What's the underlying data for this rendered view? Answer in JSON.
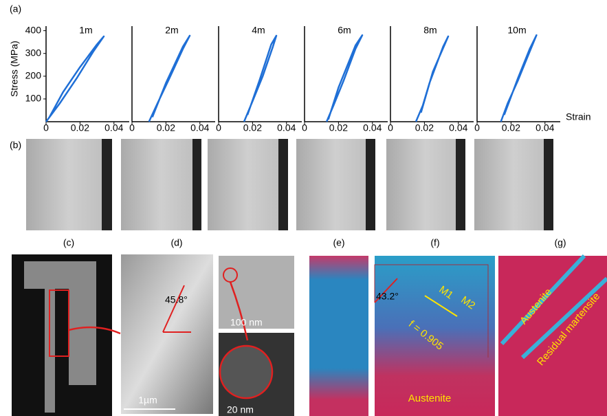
{
  "chart_data": [
    {
      "type": "line",
      "title": "1m",
      "ylabel": "Stress (MPa)",
      "x": [
        0,
        0.008,
        0.018,
        0.028,
        0.034,
        0.03,
        0.02,
        0.01,
        0.002
      ],
      "series": [
        {
          "color": "#1f6fd6",
          "values": [
            0,
            80,
            190,
            310,
            375,
            340,
            240,
            130,
            20
          ]
        }
      ],
      "xlim": [
        0,
        0.049
      ],
      "ylim": [
        0,
        420
      ],
      "xticks": [
        0,
        0.02,
        0.04
      ],
      "yticks": [
        100,
        200,
        300,
        400
      ]
    },
    {
      "type": "line",
      "title": "2m",
      "x": [
        0.01,
        0.015,
        0.022,
        0.03,
        0.034,
        0.03,
        0.02,
        0.012
      ],
      "series": [
        {
          "color": "#1f6fd6",
          "values": [
            0,
            80,
            190,
            320,
            378,
            330,
            170,
            20
          ]
        }
      ],
      "xlim": [
        0,
        0.049
      ],
      "ylim": [
        0,
        420
      ],
      "xticks": [
        0,
        0.02,
        0.04
      ]
    },
    {
      "type": "line",
      "title": "4m",
      "x": [
        0.015,
        0.02,
        0.026,
        0.032,
        0.034,
        0.031,
        0.024,
        0.017
      ],
      "series": [
        {
          "color": "#1f6fd6",
          "values": [
            0,
            90,
            200,
            330,
            378,
            340,
            180,
            30
          ]
        }
      ],
      "xlim": [
        0,
        0.049
      ],
      "ylim": [
        0,
        420
      ],
      "xticks": [
        0,
        0.02,
        0.04
      ]
    },
    {
      "type": "line",
      "title": "6m",
      "x": [
        0.013,
        0.017,
        0.023,
        0.03,
        0.034,
        0.03,
        0.02,
        0.014
      ],
      "series": [
        {
          "color": "#1f6fd6",
          "values": [
            0,
            70,
            180,
            320,
            380,
            335,
            150,
            10
          ]
        }
      ],
      "xlim": [
        0,
        0.049
      ],
      "ylim": [
        0,
        420
      ],
      "xticks": [
        0,
        0.02,
        0.04
      ]
    },
    {
      "type": "line",
      "title": "8m",
      "x": [
        0.015,
        0.019,
        0.023,
        0.027,
        0.031,
        0.034,
        0.032,
        0.025,
        0.018
      ],
      "series": [
        {
          "color": "#1f6fd6",
          "values": [
            0,
            70,
            170,
            250,
            330,
            375,
            340,
            220,
            40
          ]
        }
      ],
      "xlim": [
        0,
        0.049
      ],
      "ylim": [
        0,
        420
      ],
      "xticks": [
        0,
        0.02,
        0.04
      ]
    },
    {
      "type": "line",
      "title": "10m",
      "xlabel": "Strain",
      "x": [
        0.014,
        0.018,
        0.024,
        0.03,
        0.035,
        0.031,
        0.024,
        0.016
      ],
      "series": [
        {
          "color": "#1f6fd6",
          "values": [
            0,
            80,
            180,
            290,
            380,
            320,
            190,
            30
          ]
        }
      ],
      "xlim": [
        0,
        0.049
      ],
      "ylim": [
        0,
        420
      ],
      "xticks": [
        0,
        0.02,
        0.04
      ]
    }
  ],
  "panel_labels": [
    "(a)",
    "(b)",
    "(c)",
    "(d)",
    "(e)",
    "(f)",
    "(g)"
  ],
  "annotations": {
    "angle_d": "45.8°",
    "scale_d": "1µm",
    "scale_small1": "100 nm",
    "scale_small2": "20 nm",
    "angle_f": "43.2°",
    "m1": "M1",
    "m2": "M2",
    "fraction": "f = 0.905",
    "austenite_f": "Austenite",
    "austenite_g": "Austenite",
    "residual_g": "Residual martensite"
  }
}
